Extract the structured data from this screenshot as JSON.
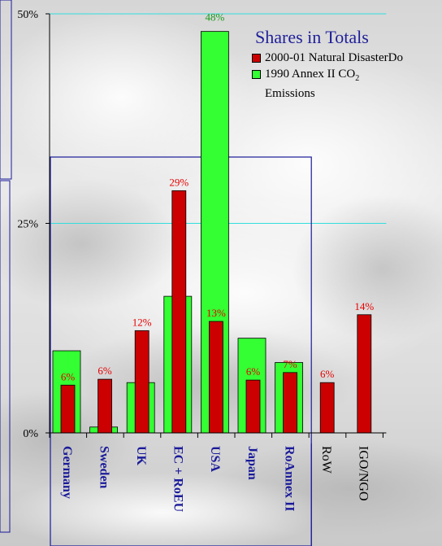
{
  "legend": {
    "title": "Shares in Totals",
    "series_a": "2000-01 Natural DisasterDo",
    "series_b_main": "1990 Annex II CO",
    "series_b_sub": "2",
    "series_b_rest": "Emissions"
  },
  "colors": {
    "series_a": "#cc0000",
    "series_b": "#33ff33",
    "group_box": "#1a1a9a",
    "grid": "#33dddd",
    "label_red": "#e60000",
    "label_green": "#1a9a1a",
    "cat_blue": "#1a1a9a",
    "cat_black": "#000000"
  },
  "chart_data": {
    "type": "bar",
    "categories": [
      "Germany",
      "Sweden",
      "UK",
      "EC + RoEU",
      "USA",
      "Japan",
      "RoAnnex II",
      "RoW",
      "IGO/NGO"
    ],
    "category_style": [
      "bold",
      "bold",
      "bold",
      "bold",
      "bold",
      "bold",
      "bold",
      "normal",
      "normal"
    ],
    "series": [
      {
        "name": "2000-01 Natural DisasterDo",
        "values": [
          5.7,
          6.4,
          12.2,
          28.9,
          13.3,
          6.3,
          7.2,
          6.0,
          14.1
        ],
        "labels": [
          "6%",
          "6%",
          "12%",
          "29%",
          "13%",
          "6%",
          "7%",
          "6%",
          "14%"
        ]
      },
      {
        "name": "1990 Annex II CO2 Emissions",
        "values": [
          9.8,
          0.7,
          6.0,
          16.3,
          47.9,
          11.3,
          8.4,
          null,
          null
        ],
        "labels": [
          "",
          "",
          "",
          "",
          "48%",
          "",
          "",
          "",
          ""
        ]
      }
    ],
    "yticks": [
      {
        "value": 0,
        "label": "0%"
      },
      {
        "value": 25,
        "label": "25%"
      },
      {
        "value": 50,
        "label": "50%"
      }
    ],
    "ylim": [
      0,
      50
    ],
    "grid": true,
    "legend_position": "top-right",
    "xlabel": "",
    "ylabel": ""
  }
}
